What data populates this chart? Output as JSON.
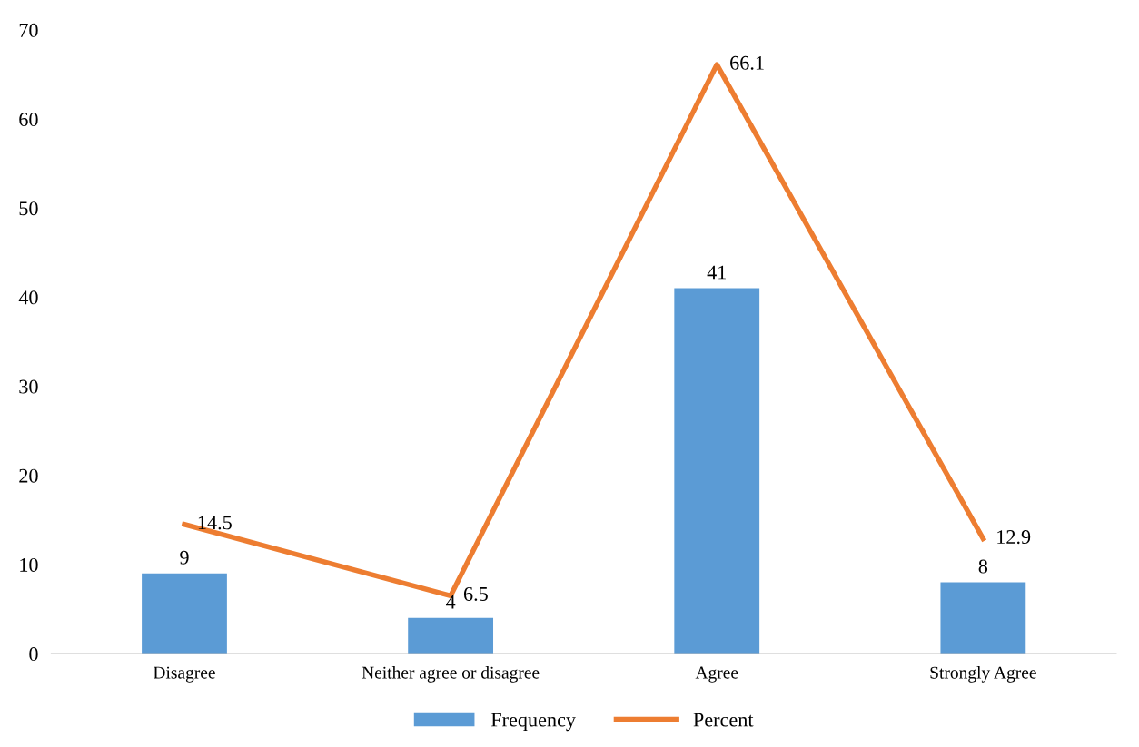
{
  "chart_data": {
    "type": "bar",
    "categories": [
      "Disagree",
      "Neither agree or disagree",
      "Agree",
      "Strongly Agree"
    ],
    "series": [
      {
        "name": "Frequency",
        "color": "#5b9bd5",
        "values": [
          9,
          4,
          41,
          8
        ]
      },
      {
        "name": "Percent",
        "type": "line",
        "color": "#ed7d31",
        "values": [
          14.5,
          6.5,
          66.1,
          12.9
        ]
      }
    ],
    "ylim": [
      0,
      70
    ],
    "yticks": [
      0,
      10,
      20,
      30,
      40,
      50,
      60,
      70
    ],
    "grid": false,
    "legend": "bottom",
    "data_labels": true,
    "marker": "none",
    "line_style": "solid"
  }
}
